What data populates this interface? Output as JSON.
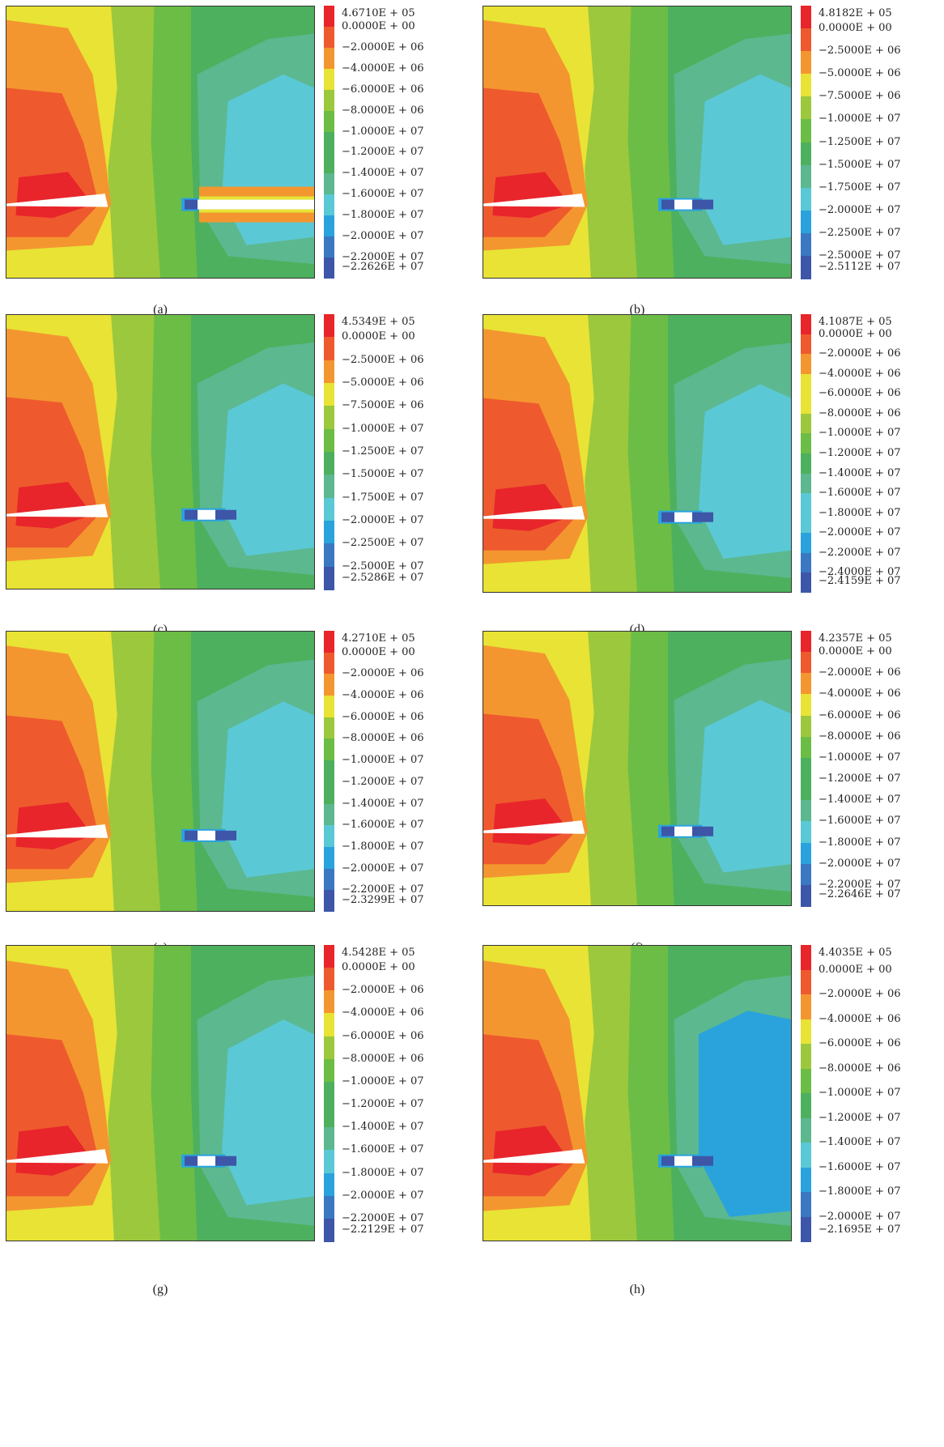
{
  "palette": [
    "#e8252b",
    "#ee5a2e",
    "#f4962f",
    "#e8e334",
    "#9cc83d",
    "#6cbd45",
    "#4db05e",
    "#5cb88f",
    "#5bc8d6",
    "#2aa3dd",
    "#3a78c2",
    "#3d56a8"
  ],
  "panels": [
    {
      "caption": "(a)",
      "labels": [
        "4.6710E + 05",
        "0.0000E + 00",
        "−2.0000E + 06",
        "−4.0000E + 06",
        "−6.0000E + 06",
        "−8.0000E + 06",
        "−1.0000E + 07",
        "−1.2000E + 07",
        "−1.4000E + 07",
        "−1.6000E + 07",
        "−1.8000E + 07",
        "−2.0000E + 07",
        "−2.2000E + 07",
        "−2.2626E + 07"
      ]
    },
    {
      "caption": "(b)",
      "labels": [
        "4.8182E + 05",
        "0.0000E + 00",
        "−2.5000E + 06",
        "−5.0000E + 06",
        "−7.5000E + 06",
        "−1.0000E + 07",
        "−1.2500E + 07",
        "−1.5000E + 07",
        "−1.7500E + 07",
        "−2.0000E + 07",
        "−2.2500E + 07",
        "−2.5000E + 07",
        "−2.5112E + 07"
      ]
    },
    {
      "caption": "(c)",
      "labels": [
        "4.5349E + 05",
        "0.0000E + 00",
        "−2.5000E + 06",
        "−5.0000E + 06",
        "−7.5000E + 06",
        "−1.0000E + 07",
        "−1.2500E + 07",
        "−1.5000E + 07",
        "−1.7500E + 07",
        "−2.0000E + 07",
        "−2.2500E + 07",
        "−2.5000E + 07",
        "−2.5286E + 07"
      ]
    },
    {
      "caption": "(d)",
      "labels": [
        "4.1087E + 05",
        "0.0000E + 00",
        "−2.0000E + 06",
        "−4.0000E + 06",
        "−6.0000E + 06",
        "−8.0000E + 06",
        "−1.0000E + 07",
        "−1.2000E + 07",
        "−1.4000E + 07",
        "−1.6000E + 07",
        "−1.8000E + 07",
        "−2.0000E + 07",
        "−2.2000E + 07",
        "−2.4000E + 07",
        "−2.4159E + 07"
      ]
    },
    {
      "caption": "(e)",
      "labels": [
        "4.2710E + 05",
        "0.0000E + 00",
        "−2.0000E + 06",
        "−4.0000E + 06",
        "−6.0000E + 06",
        "−8.0000E + 06",
        "−1.0000E + 07",
        "−1.2000E + 07",
        "−1.4000E + 07",
        "−1.6000E + 07",
        "−1.8000E + 07",
        "−2.0000E + 07",
        "−2.2000E + 07",
        "−2.3299E + 07"
      ]
    },
    {
      "caption": "(f)",
      "labels": [
        "4.2357E + 05",
        "0.0000E + 00",
        "−2.0000E + 06",
        "−4.0000E + 06",
        "−6.0000E + 06",
        "−8.0000E + 06",
        "−1.0000E + 07",
        "−1.2000E + 07",
        "−1.4000E + 07",
        "−1.6000E + 07",
        "−1.8000E + 07",
        "−2.0000E + 07",
        "−2.2000E + 07",
        "−2.2646E + 07"
      ]
    },
    {
      "caption": "(g)",
      "labels": [
        "4.5428E + 05",
        "0.0000E + 00",
        "−2.0000E + 06",
        "−4.0000E + 06",
        "−6.0000E + 06",
        "−8.0000E + 06",
        "−1.0000E + 07",
        "−1.2000E + 07",
        "−1.4000E + 07",
        "−1.6000E + 07",
        "−1.8000E + 07",
        "−2.0000E + 07",
        "−2.2000E + 07",
        "−2.2129E + 07"
      ]
    },
    {
      "caption": "(h)",
      "labels": [
        "4.4035E + 05",
        "0.0000E + 00",
        "−2.0000E + 06",
        "−4.0000E + 06",
        "−6.0000E + 06",
        "−8.0000E + 06",
        "−1.0000E + 07",
        "−1.2000E + 07",
        "−1.4000E + 07",
        "−1.6000E + 07",
        "−1.8000E + 07",
        "−2.0000E + 07",
        "−2.1695E + 07"
      ]
    }
  ]
}
